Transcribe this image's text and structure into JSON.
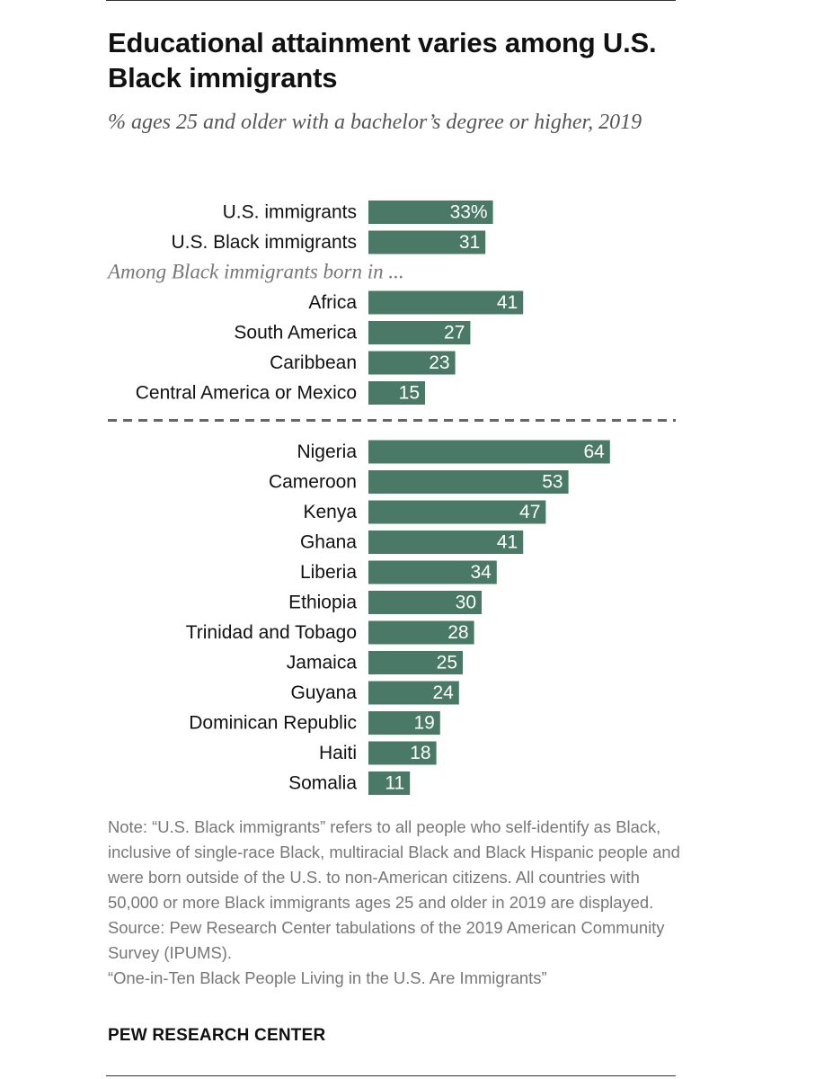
{
  "title": "Educational attainment varies among U.S. Black immigrants",
  "subtitle": "% ages 25 and older with a bachelor’s degree or higher, 2019",
  "chart_data": {
    "type": "bar",
    "orientation": "horizontal",
    "title": "Educational attainment varies among U.S. Black immigrants",
    "subtitle": "% ages 25 and older with a bachelor’s degree or higher, 2019",
    "bar_color": "#4a7a67",
    "label_color": "#ffffff",
    "divider_style": "dashed",
    "groups": [
      {
        "rows": [
          {
            "category": "U.S. immigrants",
            "value": 33,
            "label": "33%"
          },
          {
            "category": "U.S. Black immigrants",
            "value": 31,
            "label": "31"
          }
        ]
      },
      {
        "heading": "Among Black immigrants born in ...",
        "rows": [
          {
            "category": "Africa",
            "value": 41,
            "label": "41"
          },
          {
            "category": "South America",
            "value": 27,
            "label": "27"
          },
          {
            "category": "Caribbean",
            "value": 23,
            "label": "23"
          },
          {
            "category": "Central America or Mexico",
            "value": 15,
            "label": "15"
          }
        ]
      },
      {
        "divider_before": true,
        "rows": [
          {
            "category": "Nigeria",
            "value": 64,
            "label": "64"
          },
          {
            "category": "Cameroon",
            "value": 53,
            "label": "53"
          },
          {
            "category": "Kenya",
            "value": 47,
            "label": "47"
          },
          {
            "category": "Ghana",
            "value": 41,
            "label": "41"
          },
          {
            "category": "Liberia",
            "value": 34,
            "label": "34"
          },
          {
            "category": "Ethiopia",
            "value": 30,
            "label": "30"
          },
          {
            "category": "Trinidad and Tobago",
            "value": 28,
            "label": "28"
          },
          {
            "category": "Jamaica",
            "value": 25,
            "label": "25"
          },
          {
            "category": "Guyana",
            "value": 24,
            "label": "24"
          },
          {
            "category": "Dominican Republic",
            "value": 19,
            "label": "19"
          },
          {
            "category": "Haiti",
            "value": 18,
            "label": "18"
          },
          {
            "category": "Somalia",
            "value": 11,
            "label": "11"
          }
        ]
      }
    ]
  },
  "notes": [
    "Note: “U.S. Black immigrants” refers to all people who self-identify as Black, inclusive of single-race Black, multiracial Black and Black Hispanic people and were born outside of the U.S. to non-American citizens. All countries with 50,000 or more Black immigrants ages 25 and older in 2019 are displayed.",
    "Source: Pew Research Center tabulations of the 2019 American Community Survey (IPUMS).",
    "“One-in-Ten Black People Living in the U.S. Are Immigrants”"
  ],
  "brand": "PEW RESEARCH CENTER"
}
